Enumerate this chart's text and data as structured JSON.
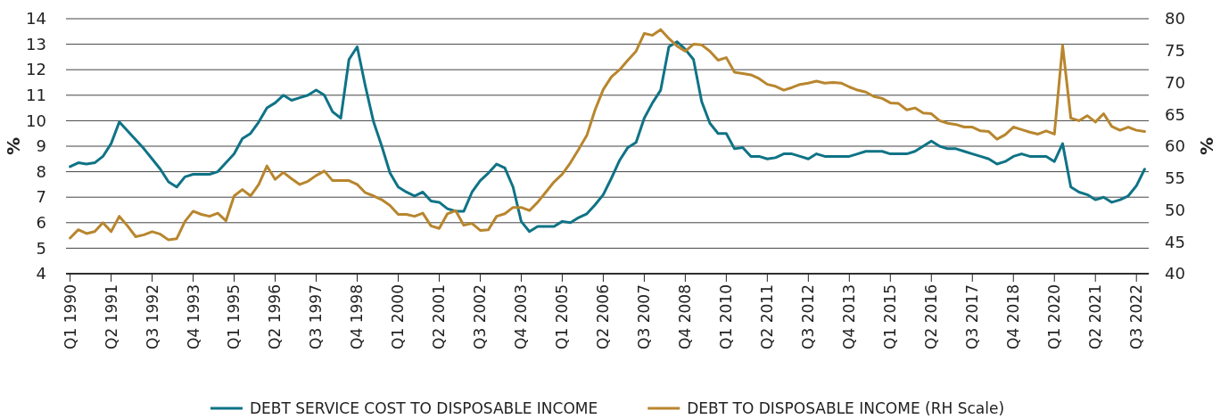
{
  "chart_data": {
    "type": "line",
    "categories": [
      "Q1 1990",
      null,
      null,
      null,
      null,
      "Q2 1991",
      null,
      null,
      null,
      null,
      "Q3 1992",
      null,
      null,
      null,
      null,
      "Q4 1993",
      null,
      null,
      null,
      null,
      "Q1 1995",
      null,
      null,
      null,
      null,
      "Q2 1996",
      null,
      null,
      null,
      null,
      "Q3 1997",
      null,
      null,
      null,
      null,
      "Q4 1998",
      null,
      null,
      null,
      null,
      "Q1 2000",
      null,
      null,
      null,
      null,
      "Q2 2001",
      null,
      null,
      null,
      null,
      "Q3 2002",
      null,
      null,
      null,
      null,
      "Q4 2003",
      null,
      null,
      null,
      null,
      "Q1 2005",
      null,
      null,
      null,
      null,
      "Q2 2006",
      null,
      null,
      null,
      null,
      "Q3 2007",
      null,
      null,
      null,
      null,
      "Q4 2008",
      null,
      null,
      null,
      null,
      "Q1 2010",
      null,
      null,
      null,
      null,
      "Q2 2011",
      null,
      null,
      null,
      null,
      "Q3 2012",
      null,
      null,
      null,
      null,
      "Q4 2013",
      null,
      null,
      null,
      null,
      "Q1 2015",
      null,
      null,
      null,
      null,
      "Q2 2016",
      null,
      null,
      null,
      null,
      "Q3 2017",
      null,
      null,
      null,
      null,
      "Q4 2018",
      null,
      null,
      null,
      null,
      "Q1 2020",
      null,
      null,
      null,
      null,
      "Q2 2021",
      null,
      null,
      null,
      null,
      "Q3 2022",
      null
    ],
    "series": [
      {
        "name": "DEBT SERVICE COST TO DISPOSABLE INCOME",
        "color": "#0f7386",
        "values": [
          8.2,
          8.35,
          8.3,
          8.35,
          8.6,
          9.1,
          9.95,
          9.6,
          9.25,
          8.9,
          8.5,
          8.1,
          7.6,
          7.4,
          7.8,
          7.9,
          7.9,
          7.9,
          8.0,
          8.35,
          8.7,
          9.3,
          9.5,
          9.95,
          10.5,
          10.7,
          11.0,
          10.8,
          10.9,
          11.0,
          11.2,
          11.0,
          10.35,
          10.1,
          12.4,
          12.9,
          11.35,
          9.95,
          9.0,
          7.95,
          7.4,
          7.2,
          7.05,
          7.2,
          6.85,
          6.8,
          6.55,
          6.45,
          6.45,
          7.2,
          7.65,
          7.95,
          8.3,
          8.15,
          7.4,
          6.05,
          5.65,
          5.85,
          5.85,
          5.85,
          6.05,
          6.0,
          6.2,
          6.35,
          6.7,
          7.1,
          7.75,
          8.45,
          8.95,
          9.15,
          10.1,
          10.7,
          11.2,
          12.9,
          13.1,
          12.8,
          12.4,
          10.75,
          9.9,
          9.5,
          9.5,
          8.9,
          8.95,
          8.6,
          8.6,
          8.5,
          8.55,
          8.7,
          8.7,
          8.6,
          8.5,
          8.7,
          8.6,
          8.6,
          8.6,
          8.6,
          8.7,
          8.8,
          8.8,
          8.8,
          8.7,
          8.7,
          8.7,
          8.8,
          9.0,
          9.2,
          9.0,
          8.9,
          8.9,
          8.8,
          8.7,
          8.6,
          8.5,
          8.3,
          8.4,
          8.6,
          8.7,
          8.6,
          8.6,
          8.6,
          8.4,
          9.1,
          7.4,
          7.2,
          7.1,
          6.9,
          7.0,
          6.8,
          6.9,
          7.05,
          7.45,
          8.1
        ]
      },
      {
        "name": "DEBT TO DISPOSABLE INCOME (RH Scale)",
        "color": "#b8862e",
        "axis": "y2",
        "values": [
          45.6,
          46.9,
          46.3,
          46.6,
          48.0,
          46.6,
          49.0,
          47.5,
          45.8,
          46.1,
          46.6,
          46.2,
          45.3,
          45.5,
          48.2,
          49.8,
          49.3,
          49.0,
          49.5,
          48.3,
          52.2,
          53.2,
          52.2,
          54.0,
          56.9,
          54.8,
          55.9,
          54.9,
          54.0,
          54.5,
          55.4,
          56.1,
          54.6,
          54.6,
          54.6,
          54.0,
          52.7,
          52.2,
          51.6,
          50.7,
          49.3,
          49.3,
          49.0,
          49.5,
          47.5,
          47.1,
          49.4,
          49.9,
          47.6,
          47.9,
          46.8,
          46.9,
          49.0,
          49.4,
          50.4,
          50.4,
          49.9,
          51.2,
          52.8,
          54.4,
          55.6,
          57.4,
          59.5,
          61.7,
          65.7,
          68.9,
          70.9,
          72.0,
          73.5,
          74.9,
          77.7,
          77.4,
          78.3,
          76.9,
          75.7,
          74.9,
          76.0,
          75.9,
          74.9,
          73.5,
          73.9,
          71.6,
          71.4,
          71.2,
          70.6,
          69.7,
          69.4,
          68.8,
          69.2,
          69.7,
          69.9,
          70.2,
          69.9,
          70.0,
          69.9,
          69.3,
          68.8,
          68.5,
          67.8,
          67.5,
          66.8,
          66.7,
          65.7,
          66.0,
          65.2,
          65.1,
          64.0,
          63.6,
          63.4,
          63.0,
          63.0,
          62.4,
          62.3,
          61.1,
          61.8,
          63.0,
          62.6,
          62.2,
          61.9,
          62.4,
          61.9,
          75.8,
          64.4,
          64.0,
          64.8,
          63.8,
          65.1,
          63.1,
          62.5,
          63.0,
          62.5,
          62.3
        ]
      }
    ],
    "ylim": [
      4,
      14
    ],
    "yticks": [
      4,
      5,
      6,
      7,
      8,
      9,
      10,
      11,
      12,
      13,
      14
    ],
    "y2lim": [
      40,
      80
    ],
    "y2ticks": [
      40,
      45,
      50,
      55,
      60,
      65,
      70,
      75,
      80
    ],
    "ylabel": "%",
    "y2label": "%",
    "grid": "y",
    "legend": "bottom",
    "marker": "none",
    "line_style": "solid"
  }
}
